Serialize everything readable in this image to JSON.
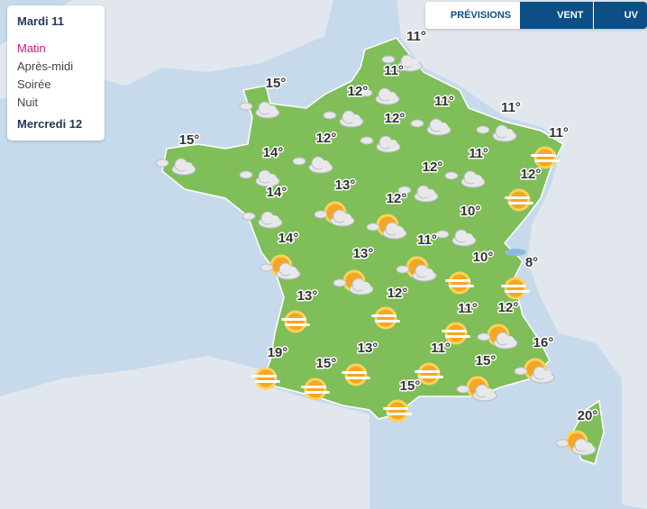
{
  "sidebar": {
    "day1": "Mardi 11",
    "periods": [
      "Matin",
      "Après-midi",
      "Soirée",
      "Nuit"
    ],
    "day2": "Mercredi 12"
  },
  "tabs": [
    "PRÉVISIONS",
    "VENT",
    "UV"
  ],
  "temperatures": [
    "11°",
    "11°",
    "15°",
    "12°",
    "11°",
    "12°",
    "11°",
    "12°",
    "15°",
    "14°",
    "11°",
    "11°",
    "12°",
    "12°",
    "13°",
    "14°",
    "12°",
    "10°",
    "14°",
    "11°",
    "13°",
    "10°",
    "8°",
    "13°",
    "12°",
    "11°",
    "12°",
    "19°",
    "13°",
    "11°",
    "16°",
    "15°",
    "15°",
    "15°",
    "20°"
  ]
}
